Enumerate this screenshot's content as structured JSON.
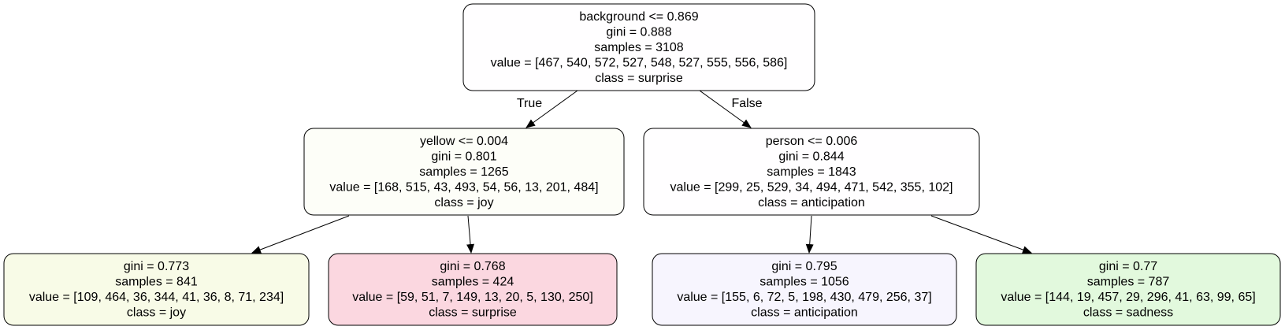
{
  "tree": {
    "nodes": [
      {
        "id": "root",
        "lines": [
          "background <= 0.869",
          "gini = 0.888",
          "samples = 3108",
          "value = [467, 540, 572, 527, 548, 527, 555, 556, 586]",
          "class = surprise"
        ],
        "fill": "#fffeff"
      },
      {
        "id": "left",
        "lines": [
          "yellow <= 0.004",
          "gini = 0.801",
          "samples = 1265",
          "value = [168, 515, 43, 493, 54, 56, 13, 201, 484]",
          "class = joy"
        ],
        "fill": "#fdfef8"
      },
      {
        "id": "right",
        "lines": [
          "person <= 0.006",
          "gini = 0.844",
          "samples = 1843",
          "value = [299, 25, 529, 34, 494, 471, 542, 355, 102]",
          "class = anticipation"
        ],
        "fill": "#fffeff"
      },
      {
        "id": "left-left",
        "lines": [
          "gini = 0.773",
          "samples = 841",
          "value = [109, 464, 36, 344, 41, 36, 8, 71, 234]",
          "class = joy"
        ],
        "fill": "#f8fbe7"
      },
      {
        "id": "left-right",
        "lines": [
          "gini = 0.768",
          "samples = 424",
          "value = [59, 51, 7, 149, 13, 20, 5, 130, 250]",
          "class = surprise"
        ],
        "fill": "#fbd7e0"
      },
      {
        "id": "right-left",
        "lines": [
          "gini = 0.795",
          "samples = 1056",
          "value = [155, 6, 72, 5, 198, 430, 479, 256, 37]",
          "class = anticipation"
        ],
        "fill": "#f7f5fe"
      },
      {
        "id": "right-right",
        "lines": [
          "gini = 0.77",
          "samples = 787",
          "value = [144, 19, 457, 29, 296, 41, 63, 99, 65]",
          "class = sadness"
        ],
        "fill": "#e2f9dd"
      }
    ],
    "edges": [
      {
        "from": "root",
        "to": "left",
        "label": "True"
      },
      {
        "from": "root",
        "to": "right",
        "label": "False"
      },
      {
        "from": "left",
        "to": "left-left",
        "label": ""
      },
      {
        "from": "left",
        "to": "left-right",
        "label": ""
      },
      {
        "from": "right",
        "to": "right-left",
        "label": ""
      },
      {
        "from": "right",
        "to": "right-right",
        "label": ""
      }
    ]
  }
}
